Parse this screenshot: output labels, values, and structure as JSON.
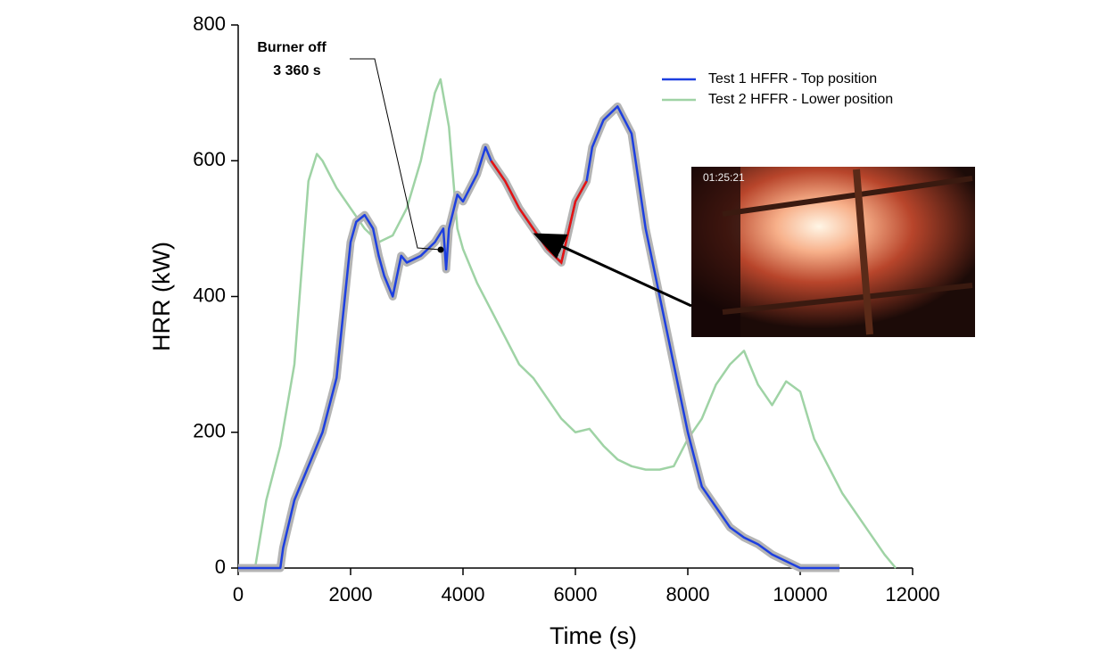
{
  "chart_data": {
    "type": "line",
    "xlabel": "Time (s)",
    "ylabel": "HRR (kW)",
    "xlim": [
      0,
      12000
    ],
    "ylim": [
      0,
      800
    ],
    "xticks": [
      0,
      2000,
      4000,
      6000,
      8000,
      10000,
      12000
    ],
    "yticks": [
      0,
      200,
      400,
      600,
      800
    ],
    "legend": "upper right",
    "band_color": "#b4b4b4",
    "highlight": {
      "xlim": [
        4500,
        6200
      ],
      "color": "#e8130f"
    },
    "series": [
      {
        "name": "Test 1 HFFR - Top position",
        "color": "#1d3fe0",
        "x": [
          0,
          750,
          800,
          1000,
          1250,
          1500,
          1750,
          1900,
          2000,
          2100,
          2250,
          2400,
          2500,
          2600,
          2750,
          2900,
          3000,
          3250,
          3500,
          3650,
          3700,
          3750,
          3900,
          4000,
          4250,
          4400,
          4500,
          4750,
          5000,
          5250,
          5500,
          5750,
          6000,
          6200,
          6300,
          6500,
          6750,
          7000,
          7250,
          7500,
          7750,
          8000,
          8250,
          8500,
          8750,
          9000,
          9250,
          9500,
          9750,
          10000,
          10700
        ],
        "values": [
          0,
          0,
          30,
          100,
          150,
          200,
          280,
          400,
          480,
          510,
          520,
          500,
          460,
          430,
          400,
          460,
          450,
          460,
          480,
          500,
          440,
          500,
          550,
          540,
          580,
          620,
          600,
          570,
          530,
          500,
          470,
          450,
          540,
          570,
          620,
          660,
          680,
          640,
          500,
          400,
          300,
          200,
          120,
          90,
          60,
          45,
          35,
          20,
          10,
          0,
          0
        ]
      },
      {
        "name": "Test 2 HFFR - Lower position",
        "color": "#9fd3a5",
        "x": [
          300,
          500,
          750,
          1000,
          1250,
          1400,
          1500,
          1750,
          2000,
          2250,
          2500,
          2750,
          3000,
          3250,
          3500,
          3600,
          3750,
          3900,
          4000,
          4250,
          4500,
          4750,
          5000,
          5250,
          5500,
          5750,
          6000,
          6250,
          6500,
          6750,
          7000,
          7250,
          7500,
          7750,
          8000,
          8250,
          8500,
          8750,
          9000,
          9250,
          9500,
          9750,
          10000,
          10250,
          10500,
          10750,
          11000,
          11250,
          11500,
          11700
        ],
        "values": [
          0,
          100,
          180,
          300,
          570,
          610,
          600,
          560,
          530,
          500,
          480,
          490,
          530,
          600,
          700,
          720,
          650,
          500,
          470,
          420,
          380,
          340,
          300,
          280,
          250,
          220,
          200,
          205,
          180,
          160,
          150,
          145,
          145,
          150,
          190,
          220,
          270,
          300,
          320,
          270,
          240,
          275,
          260,
          190,
          150,
          110,
          80,
          50,
          20,
          0
        ]
      }
    ],
    "annotations": [
      "Burner off",
      "3 360 s"
    ],
    "inset_timestamp": "01:25:21"
  }
}
